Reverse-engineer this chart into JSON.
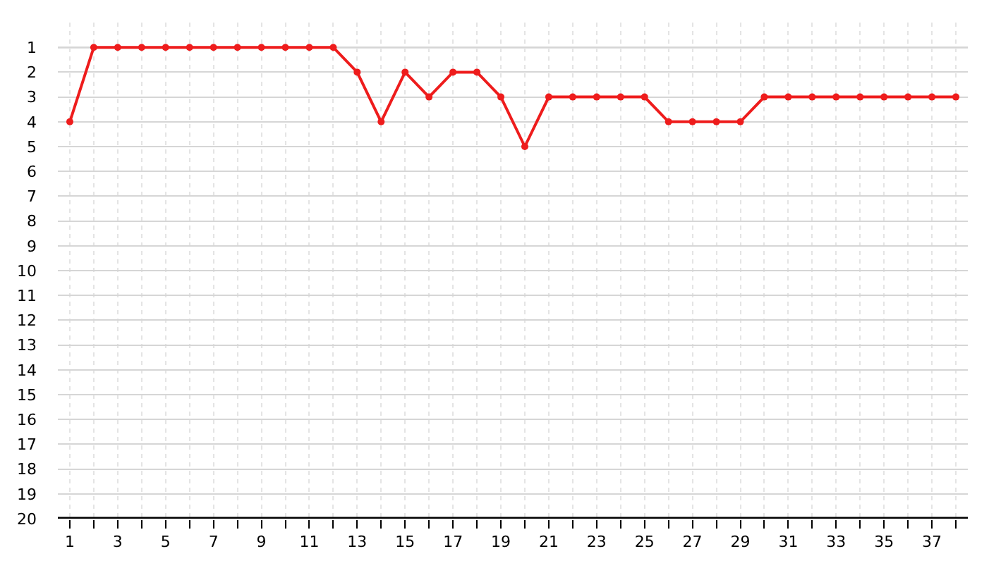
{
  "chart_data": {
    "type": "line",
    "x": [
      1,
      2,
      3,
      4,
      5,
      6,
      7,
      8,
      9,
      10,
      11,
      12,
      13,
      14,
      15,
      16,
      17,
      18,
      19,
      20,
      21,
      22,
      23,
      24,
      25,
      26,
      27,
      28,
      29,
      30,
      31,
      32,
      33,
      34,
      35,
      36,
      37,
      38
    ],
    "series": [
      {
        "color": "#ee1c1c",
        "values": [
          4,
          1,
          1,
          1,
          1,
          1,
          1,
          1,
          1,
          1,
          1,
          1,
          2,
          4,
          2,
          3,
          2,
          2,
          3,
          5,
          3,
          3,
          3,
          3,
          3,
          4,
          4,
          4,
          4,
          3,
          3,
          3,
          3,
          3,
          3,
          3,
          3,
          3
        ]
      }
    ],
    "xlim": [
      0.5,
      38.5
    ],
    "xticks": [
      1,
      {
        "value": 2,
        "label": null
      },
      3,
      {
        "value": 4,
        "label": null
      },
      5,
      {
        "value": 6,
        "label": null
      },
      7,
      {
        "value": 8,
        "label": null
      },
      9,
      {
        "value": 10,
        "label": null
      },
      11,
      {
        "value": 12,
        "label": null
      },
      13,
      {
        "value": 14,
        "label": null
      },
      15,
      {
        "value": 16,
        "label": null
      },
      17,
      {
        "value": 18,
        "label": null
      },
      19,
      {
        "value": 20,
        "label": null
      },
      21,
      {
        "value": 22,
        "label": null
      },
      23,
      {
        "value": 24,
        "label": null
      },
      25,
      {
        "value": 26,
        "label": null
      },
      27,
      {
        "value": 28,
        "label": null
      },
      29,
      {
        "value": 30,
        "label": null
      },
      31,
      {
        "value": 32,
        "label": null
      },
      33,
      {
        "value": 34,
        "label": null
      },
      35,
      {
        "value": 36,
        "label": null
      },
      37,
      {
        "value": 38,
        "label": null
      }
    ],
    "ylim": [
      20,
      0
    ],
    "yticks": [
      1,
      2,
      3,
      4,
      5,
      6,
      7,
      8,
      9,
      10,
      11,
      12,
      13,
      14,
      15,
      16,
      17,
      18,
      19,
      20
    ],
    "ref_lines": [
      {
        "axis": "y",
        "value": 1,
        "color": "#888888"
      }
    ],
    "grid": true,
    "marker": "circle",
    "line_style": "solid"
  }
}
